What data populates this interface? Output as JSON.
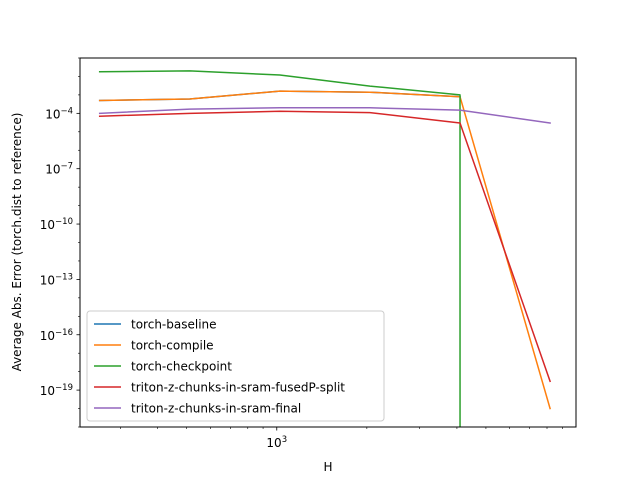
{
  "chart_data": {
    "type": "line",
    "title": "",
    "xlabel": "H",
    "ylabel": "Average Abs. Error (torch.dist to reference)",
    "xscale": "log",
    "yscale": "log",
    "xlim": [
      220,
      10000
    ],
    "ylim": [
      1e-21,
      0.1
    ],
    "xticks": [
      {
        "value": 1000,
        "label": "10",
        "exp": "3"
      }
    ],
    "yticks": [
      {
        "value": 1e-19,
        "label": "10",
        "exp": "−19"
      },
      {
        "value": 1e-16,
        "label": "10",
        "exp": "−16"
      },
      {
        "value": 1e-13,
        "label": "10",
        "exp": "−13"
      },
      {
        "value": 1e-10,
        "label": "10",
        "exp": "−10"
      },
      {
        "value": 1e-07,
        "label": "10",
        "exp": "−7"
      },
      {
        "value": 0.0001,
        "label": "10",
        "exp": "−4"
      }
    ],
    "legend_position": "lower-left",
    "grid": false,
    "series": [
      {
        "name": "torch-baseline",
        "color": "#1f77b4",
        "points": [
          [
            256,
            0.0005
          ],
          [
            512,
            0.0006
          ],
          [
            1024,
            0.0016
          ],
          [
            2048,
            0.0014
          ],
          [
            4096,
            0.0008
          ]
        ]
      },
      {
        "name": "torch-compile",
        "color": "#ff7f0e",
        "points": [
          [
            256,
            0.0005
          ],
          [
            512,
            0.0006
          ],
          [
            1024,
            0.0016
          ],
          [
            2048,
            0.0014
          ],
          [
            4096,
            0.0008
          ],
          [
            8192,
            1e-20
          ]
        ]
      },
      {
        "name": "torch-checkpoint",
        "color": "#2ca02c",
        "points": [
          [
            256,
            0.018
          ],
          [
            512,
            0.02
          ],
          [
            1024,
            0.012
          ],
          [
            2048,
            0.003
          ],
          [
            4096,
            0.001
          ],
          [
            4097,
            1e-21
          ]
        ]
      },
      {
        "name": "triton-z-chunks-in-sram-fusedP-split",
        "color": "#d62728",
        "points": [
          [
            256,
            7e-05
          ],
          [
            512,
            0.0001
          ],
          [
            1024,
            0.00013
          ],
          [
            2048,
            0.00011
          ],
          [
            4096,
            3e-05
          ],
          [
            8192,
            3e-19
          ]
        ]
      },
      {
        "name": "triton-z-chunks-in-sram-final",
        "color": "#9467bd",
        "points": [
          [
            256,
            0.0001
          ],
          [
            512,
            0.00017
          ],
          [
            1024,
            0.0002
          ],
          [
            2048,
            0.0002
          ],
          [
            4096,
            0.00015
          ],
          [
            8192,
            3e-05
          ]
        ]
      }
    ]
  }
}
